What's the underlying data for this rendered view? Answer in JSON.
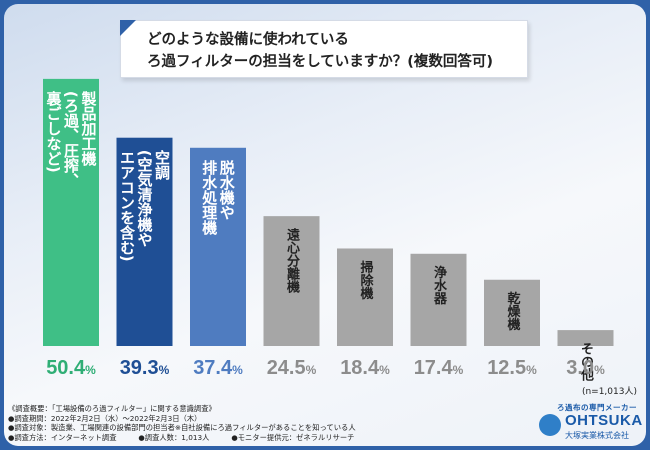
{
  "title": {
    "line1": "どのような設備に使われている",
    "line2": "ろ過フィルターの担当をしていますか？(複数回答可)"
  },
  "chart_data": {
    "type": "bar",
    "categories": [
      "製品加工機(ろ過、圧搾、裏ごしなど)",
      "空調(空気清浄機やエアコンを含む)",
      "脱水機や排水処理機",
      "遠心分離機",
      "掃除機",
      "浄水器",
      "乾燥機",
      "その他"
    ],
    "label_lines": [
      [
        "製品加工機",
        "(ろ過、圧搾、",
        "裏ごしなど)"
      ],
      [
        "空調",
        "(空気清浄機や",
        "エアコンを含む)"
      ],
      [
        "脱水機や",
        "排水処理機"
      ],
      [
        "遠心分離機"
      ],
      [
        "掃除機"
      ],
      [
        "浄水器"
      ],
      [
        "乾燥機"
      ],
      [
        "その他"
      ]
    ],
    "values": [
      50.4,
      39.3,
      37.4,
      24.5,
      18.4,
      17.4,
      12.5,
      3.0
    ],
    "value_labels": [
      "50.4",
      "39.3",
      "37.4",
      "24.5",
      "18.4",
      "17.4",
      "12.5",
      "3.0"
    ],
    "unit": "%",
    "colors": [
      "#3fbf86",
      "#1f4f95",
      "#4f7cc0",
      "#a6a6a6",
      "#a6a6a6",
      "#a6a6a6",
      "#a6a6a6",
      "#a6a6a6"
    ],
    "value_colors": [
      "#2fae75",
      "#1f4f95",
      "#4f7cc0",
      "#8c8c8c",
      "#8c8c8c",
      "#8c8c8c",
      "#8c8c8c",
      "#8c8c8c"
    ],
    "n_label": "(n=1,013人)"
  },
  "info": {
    "line1": "《調査概要：「工場設備のろ過フィルター」に関する意識調査》",
    "line2": "●調査期間：2022年2月2日（水）～2022年2月3日（木）",
    "line3": "●調査対象：製造業、工場関連の設備部門の担当者※自社設備にろ過フィルターがあることを知っている人",
    "line4": "●調査方法：インターネット調査　　　●調査人数：1,013人　　　●モニター提供元：ゼネラルリサーチ"
  },
  "logo": {
    "tagline": "ろ過布の専門メーカー",
    "brand": "OHTSUKA",
    "company": "大塚実業株式会社"
  },
  "style": {
    "frame_color": "#2f61a8",
    "bar_label_color": "#ffffff"
  }
}
